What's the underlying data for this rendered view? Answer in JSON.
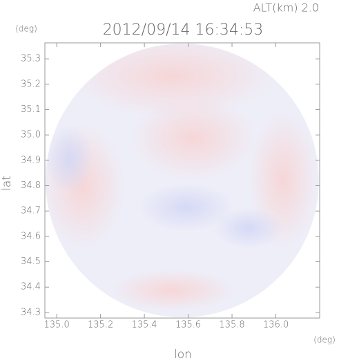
{
  "chart_data": {
    "type": "radar-map",
    "title": "2012/09/14 16:34:53",
    "annotation": "ALT(km) 2.0",
    "x_label": "lon",
    "y_label": "lat",
    "x_unit": "(deg)",
    "y_unit": "(deg)",
    "xlim": [
      134.946,
      136.2
    ],
    "ylim": [
      34.278,
      35.363
    ],
    "xticks": [
      {
        "value": 135.0,
        "label": "135.0"
      },
      135.2,
      135.4,
      135.6,
      135.8,
      {
        "value": 136.0,
        "label": "136.0"
      }
    ],
    "yticks": [
      34.3,
      34.4,
      34.5,
      34.6,
      34.7,
      34.8,
      34.9,
      {
        "value": 35.0,
        "label": "35.0"
      },
      35.1,
      35.2,
      35.3
    ]
  }
}
